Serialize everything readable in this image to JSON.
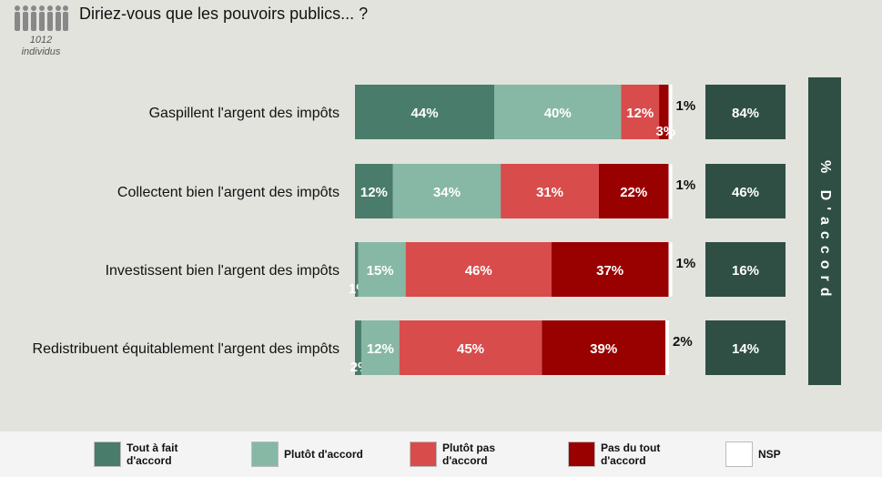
{
  "header": {
    "question": "Diriez-vous que les pouvoirs publics... ?",
    "sample_line1": "1012",
    "sample_line2": "individus"
  },
  "side_panel": {
    "title": "% D'accord"
  },
  "colors": {
    "tout_a_fait": "#4a7c6b",
    "plutot_accord": "#86b8a5",
    "plutot_pas": "#d94c4c",
    "pas_du_tout": "#990000",
    "nsp": "#ffffff",
    "accord_box": "#2f4f45"
  },
  "chart_data": {
    "type": "bar",
    "orientation": "horizontal",
    "stacked": true,
    "unit": "%",
    "categories": [
      "Gaspillent l'argent des impôts",
      "Collectent bien l'argent des impôts",
      "Investissent bien l'argent des impôts",
      "Redistribuent équitablement l'argent des impôts"
    ],
    "series": [
      {
        "name": "Tout à fait d'accord",
        "values": [
          44,
          12,
          1,
          2
        ]
      },
      {
        "name": "Plutôt d'accord",
        "values": [
          40,
          34,
          15,
          12
        ]
      },
      {
        "name": "Plutôt pas d'accord",
        "values": [
          12,
          31,
          46,
          45
        ]
      },
      {
        "name": "Pas du tout d'accord",
        "values": [
          3,
          22,
          37,
          39
        ]
      },
      {
        "name": "NSP",
        "values": [
          1,
          1,
          1,
          2
        ]
      }
    ],
    "totals_accord": [
      84,
      46,
      16,
      14
    ],
    "legend_position": "bottom"
  },
  "legend": [
    {
      "line1": "Tout à fait",
      "line2": "d'accord"
    },
    {
      "line1": "Plutôt d'accord",
      "line2": ""
    },
    {
      "line1": "Plutôt pas",
      "line2": "d'accord"
    },
    {
      "line1": "Pas du tout",
      "line2": "d'accord"
    },
    {
      "line1": "NSP",
      "line2": ""
    }
  ]
}
